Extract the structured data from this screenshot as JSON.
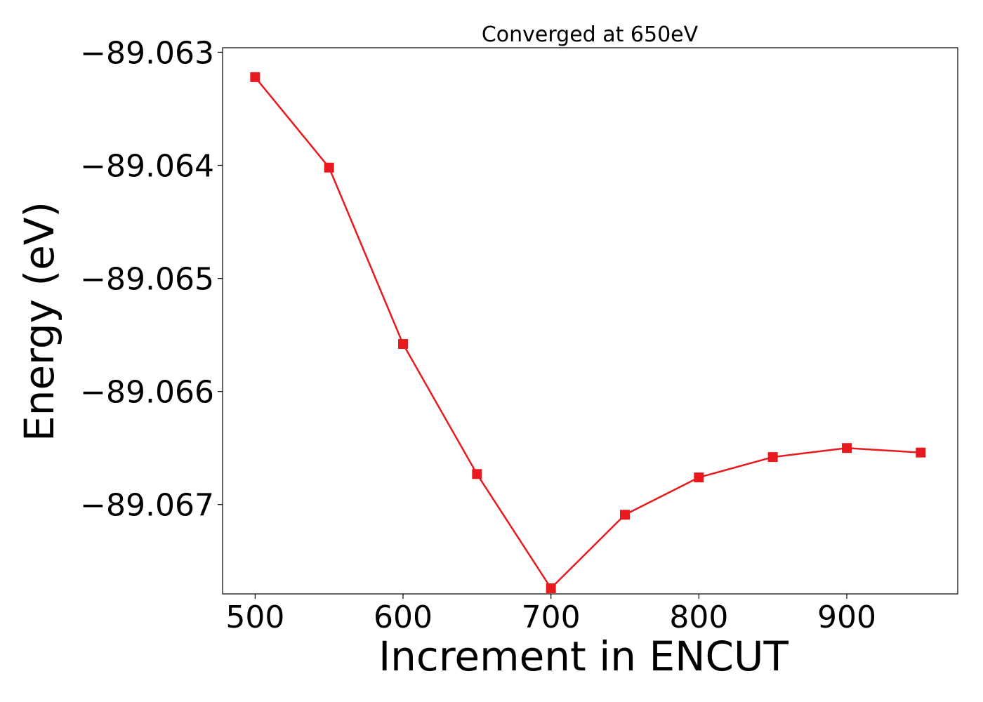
{
  "chart_data": {
    "type": "line",
    "title": "Converged at 650eV",
    "xlabel": "Increment in ENCUT",
    "ylabel": "Energy (eV)",
    "xlim": [
      478,
      975
    ],
    "ylim": [
      -89.06779,
      -89.06296
    ],
    "x_ticks": [
      500,
      600,
      700,
      800,
      900
    ],
    "x_tick_labels": [
      "500",
      "600",
      "700",
      "800",
      "900"
    ],
    "y_ticks": [
      -89.063,
      -89.064,
      -89.065,
      -89.066,
      -89.067
    ],
    "y_tick_labels": [
      "−89.063",
      "−89.064",
      "−89.065",
      "−89.066",
      "−89.067"
    ],
    "grid": false,
    "series": [
      {
        "color": "#e8191f",
        "marker": "square",
        "x": [
          500,
          550,
          600,
          650,
          700,
          750,
          800,
          850,
          900,
          950
        ],
        "y": [
          -89.06322,
          -89.06402,
          -89.06558,
          -89.06673,
          -89.06774,
          -89.06709,
          -89.06676,
          -89.06658,
          -89.0665,
          -89.06654
        ]
      }
    ]
  }
}
